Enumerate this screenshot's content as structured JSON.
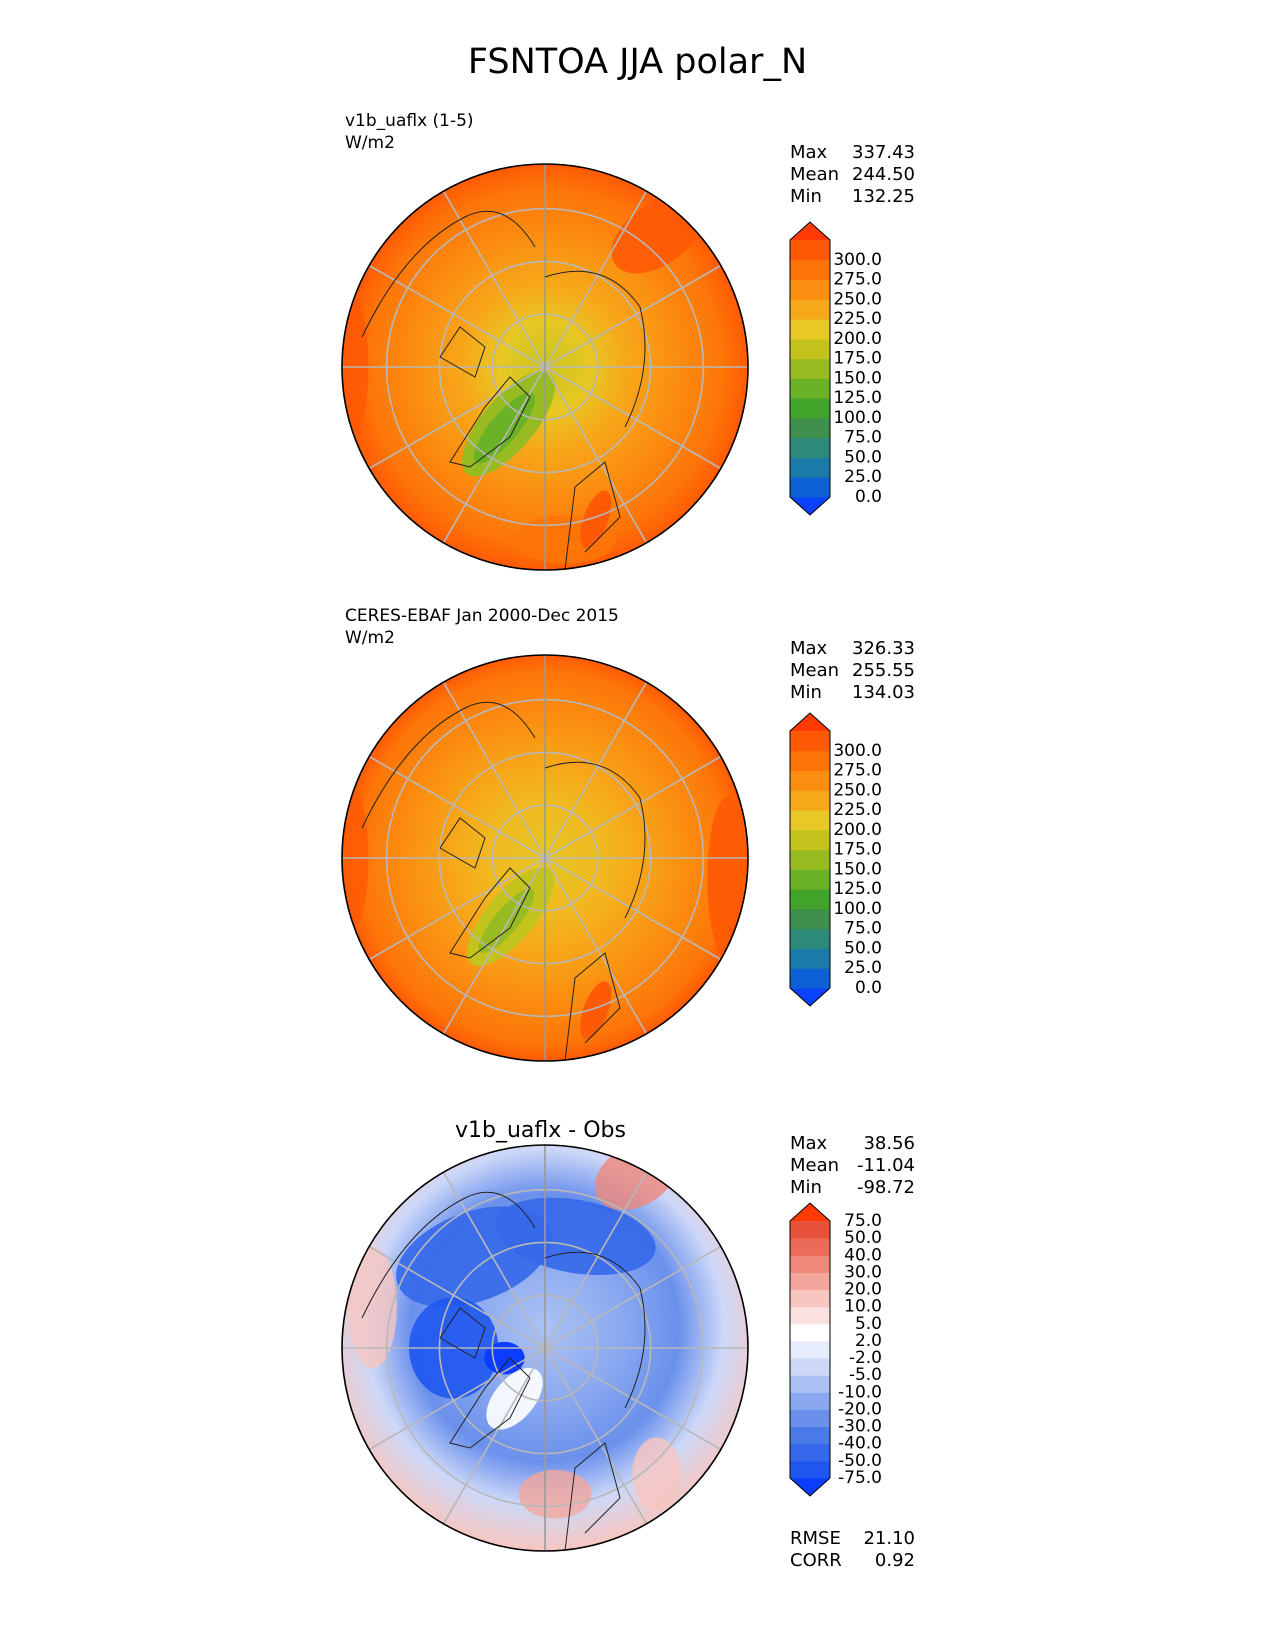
{
  "figure": {
    "title": "FSNTOA JJA polar_N"
  },
  "panels": [
    {
      "id": "model",
      "label_line1": "v1b_uaflx (1-5)",
      "label_line2": "W/m2",
      "stats": {
        "max_label": "Max",
        "max": "337.43",
        "mean_label": "Mean",
        "mean": "244.50",
        "min_label": "Min",
        "min": "132.25"
      },
      "colorbar": {
        "ticks": [
          "0.0",
          "25.0",
          "50.0",
          "75.0",
          "100.0",
          "125.0",
          "150.0",
          "175.0",
          "200.0",
          "225.0",
          "250.0",
          "275.0",
          "300.0"
        ],
        "colors": [
          "#0a42ff",
          "#0c62d4",
          "#1a7aa8",
          "#2e8a78",
          "#3f8f4e",
          "#41a32a",
          "#6cb227",
          "#97bb20",
          "#c4c31e",
          "#e7c825",
          "#f7a81a",
          "#fb8d10",
          "#fd7408",
          "#fe5a05",
          "#ff3a05"
        ]
      }
    },
    {
      "id": "obs",
      "label_line1": "CERES-EBAF Jan 2000-Dec 2015",
      "label_line2": "W/m2",
      "stats": {
        "max_label": "Max",
        "max": "326.33",
        "mean_label": "Mean",
        "mean": "255.55",
        "min_label": "Min",
        "min": "134.03"
      },
      "colorbar": {
        "ticks": [
          "0.0",
          "25.0",
          "50.0",
          "75.0",
          "100.0",
          "125.0",
          "150.0",
          "175.0",
          "200.0",
          "225.0",
          "250.0",
          "275.0",
          "300.0"
        ],
        "colors": [
          "#0a42ff",
          "#0c62d4",
          "#1a7aa8",
          "#2e8a78",
          "#3f8f4e",
          "#41a32a",
          "#6cb227",
          "#97bb20",
          "#c4c31e",
          "#e7c825",
          "#f7a81a",
          "#fb8d10",
          "#fd7408",
          "#fe5a05",
          "#ff3a05"
        ]
      }
    },
    {
      "id": "diff",
      "title": "v1b_uaflx - Obs",
      "stats": {
        "max_label": "Max",
        "max": "38.56",
        "mean_label": "Mean",
        "mean": "-11.04",
        "min_label": "Min",
        "min": "-98.72"
      },
      "extra_stats": {
        "rmse_label": "RMSE",
        "rmse": "21.10",
        "corr_label": "CORR",
        "corr": "0.92"
      },
      "colorbar": {
        "ticks": [
          "-75.0",
          "-50.0",
          "-40.0",
          "-30.0",
          "-20.0",
          "-10.0",
          "-5.0",
          "-2.0",
          "2.0",
          "5.0",
          "10.0",
          "20.0",
          "30.0",
          "40.0",
          "50.0",
          "75.0"
        ],
        "colors": [
          "#0b3cff",
          "#1f56f0",
          "#3568ea",
          "#4a7ae8",
          "#6a90ec",
          "#8aa8f0",
          "#acc2f4",
          "#cdd8f8",
          "#e6ecfb",
          "#ffffff",
          "#fbe2e0",
          "#f7c6c0",
          "#f3a69c",
          "#ef877a",
          "#eb6a58",
          "#e8523a",
          "#ff3a05"
        ]
      }
    }
  ]
}
